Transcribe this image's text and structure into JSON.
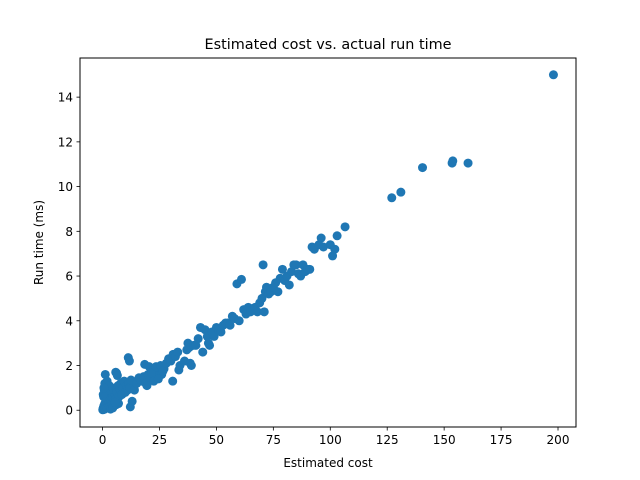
{
  "chart_data": {
    "type": "scatter",
    "title": "Estimated cost vs. actual run time",
    "xlabel": "Estimated cost",
    "ylabel": "Run time (ms)",
    "xlim": [
      -9.9,
      207.9
    ],
    "ylim": [
      -0.75,
      15.75
    ],
    "xticks": [
      0,
      25,
      50,
      75,
      100,
      125,
      150,
      175,
      200
    ],
    "yticks": [
      0,
      2,
      4,
      6,
      8,
      10,
      12,
      14
    ],
    "grid": false,
    "legend": "none",
    "marker_color": "#1f77b4",
    "series": [
      {
        "points": [
          [
            0.1,
            0.02
          ],
          [
            0.2,
            0.05
          ],
          [
            0.3,
            0.1
          ],
          [
            0.4,
            0.03
          ],
          [
            0.5,
            0.15
          ],
          [
            0.6,
            0.2
          ],
          [
            0.8,
            0.08
          ],
          [
            1.0,
            0.3
          ],
          [
            1.2,
            0.12
          ],
          [
            1.5,
            0.4
          ],
          [
            1.8,
            0.25
          ],
          [
            2.0,
            0.5
          ],
          [
            2.2,
            0.18
          ],
          [
            2.5,
            0.6
          ],
          [
            2.8,
            0.35
          ],
          [
            3.0,
            0.7
          ],
          [
            3.2,
            0.22
          ],
          [
            3.5,
            0.45
          ],
          [
            3.8,
            0.85
          ],
          [
            4.0,
            0.3
          ],
          [
            4.3,
            0.55
          ],
          [
            4.6,
            0.9
          ],
          [
            5.0,
            0.4
          ],
          [
            5.3,
            0.75
          ],
          [
            5.6,
            1.0
          ],
          [
            6.0,
            0.5
          ],
          [
            6.4,
            0.8
          ],
          [
            6.8,
            1.1
          ],
          [
            7.2,
            0.6
          ],
          [
            7.6,
            0.95
          ],
          [
            8.0,
            1.2
          ],
          [
            8.5,
            0.7
          ],
          [
            9.0,
            1.0
          ],
          [
            9.5,
            1.3
          ],
          [
            10.0,
            0.8
          ],
          [
            10.5,
            1.1
          ],
          [
            11.0,
            0.9
          ],
          [
            11.5,
            1.2
          ],
          [
            12.0,
            1.0
          ],
          [
            12.5,
            1.35
          ],
          [
            0.5,
            0.6
          ],
          [
            0.8,
            0.9
          ],
          [
            1.0,
            1.2
          ],
          [
            1.2,
            1.6
          ],
          [
            1.5,
            1.0
          ],
          [
            2.0,
            1.3
          ],
          [
            2.5,
            0.9
          ],
          [
            3.0,
            1.1
          ],
          [
            0.3,
            0.7
          ],
          [
            0.6,
            1.0
          ],
          [
            1.0,
            0.05
          ],
          [
            2.0,
            0.1
          ],
          [
            3.0,
            0.15
          ],
          [
            4.0,
            0.2
          ],
          [
            5.0,
            0.2
          ],
          [
            6.0,
            0.25
          ],
          [
            7.0,
            0.3
          ],
          [
            3.5,
            0.05
          ],
          [
            4.5,
            0.1
          ],
          [
            5.5,
            0.35
          ],
          [
            6.2,
            1.65
          ],
          [
            5.8,
            1.7
          ],
          [
            6.5,
            1.55
          ],
          [
            11.3,
            2.35
          ],
          [
            11.8,
            2.2
          ],
          [
            12.2,
            0.15
          ],
          [
            13.0,
            0.4
          ],
          [
            14.0,
            0.9
          ],
          [
            15.0,
            1.2
          ],
          [
            16.0,
            1.45
          ],
          [
            17.0,
            1.3
          ],
          [
            18.0,
            1.5
          ],
          [
            19.0,
            1.2
          ],
          [
            20.0,
            1.6
          ],
          [
            21.0,
            1.4
          ],
          [
            22.0,
            1.8
          ],
          [
            23.0,
            1.5
          ],
          [
            24.0,
            1.7
          ],
          [
            25.0,
            1.9
          ],
          [
            26.0,
            1.6
          ],
          [
            27.0,
            1.85
          ],
          [
            18.5,
            2.05
          ],
          [
            19.5,
            1.1
          ],
          [
            20.5,
            1.95
          ],
          [
            21.5,
            1.65
          ],
          [
            22.5,
            1.3
          ],
          [
            23.5,
            1.95
          ],
          [
            24.5,
            1.4
          ],
          [
            25.5,
            2.0
          ],
          [
            26.5,
            1.75
          ],
          [
            28.0,
            2.1
          ],
          [
            29.0,
            2.3
          ],
          [
            30.0,
            2.2
          ],
          [
            30.8,
            1.3
          ],
          [
            31.0,
            2.5
          ],
          [
            32.0,
            2.4
          ],
          [
            33.0,
            2.6
          ],
          [
            33.5,
            1.8
          ],
          [
            34.0,
            2.0
          ],
          [
            36.0,
            2.2
          ],
          [
            37.0,
            2.7
          ],
          [
            37.5,
            3.0
          ],
          [
            38.0,
            2.8
          ],
          [
            38.5,
            2.1
          ],
          [
            39.0,
            2.0
          ],
          [
            40.0,
            2.9
          ],
          [
            41.0,
            2.9
          ],
          [
            42.0,
            3.2
          ],
          [
            43.0,
            3.7
          ],
          [
            44.0,
            2.6
          ],
          [
            45.0,
            3.6
          ],
          [
            46.0,
            3.3
          ],
          [
            46.5,
            3.0
          ],
          [
            47.0,
            2.9
          ],
          [
            48.0,
            3.5
          ],
          [
            49.0,
            3.3
          ],
          [
            50.0,
            3.7
          ],
          [
            51.0,
            3.6
          ],
          [
            52.0,
            3.5
          ],
          [
            53.0,
            3.8
          ],
          [
            54.0,
            3.9
          ],
          [
            55.0,
            3.9
          ],
          [
            56.0,
            3.8
          ],
          [
            57.0,
            4.2
          ],
          [
            58.0,
            4.1
          ],
          [
            59.0,
            5.65
          ],
          [
            60.0,
            4.0
          ],
          [
            61.0,
            5.85
          ],
          [
            62.0,
            4.5
          ],
          [
            63.0,
            4.3
          ],
          [
            64.0,
            4.6
          ],
          [
            65.0,
            4.4
          ],
          [
            66.0,
            4.5
          ],
          [
            67.0,
            4.6
          ],
          [
            68.0,
            4.4
          ],
          [
            69.0,
            4.8
          ],
          [
            70.0,
            5.0
          ],
          [
            70.5,
            6.5
          ],
          [
            71.0,
            4.4
          ],
          [
            71.5,
            5.3
          ],
          [
            72.0,
            5.5
          ],
          [
            73.0,
            5.2
          ],
          [
            74.0,
            5.3
          ],
          [
            75.0,
            5.5
          ],
          [
            76.0,
            5.7
          ],
          [
            77.0,
            5.3
          ],
          [
            78.0,
            5.9
          ],
          [
            79.0,
            6.3
          ],
          [
            80.0,
            5.8
          ],
          [
            81.0,
            6.0
          ],
          [
            82.0,
            5.6
          ],
          [
            83.0,
            6.2
          ],
          [
            84.0,
            6.5
          ],
          [
            85.0,
            6.5
          ],
          [
            86.0,
            6.1
          ],
          [
            87.0,
            6.0
          ],
          [
            88.0,
            6.5
          ],
          [
            89.0,
            6.2
          ],
          [
            90.0,
            6.3
          ],
          [
            91.0,
            6.3
          ],
          [
            92.0,
            7.3
          ],
          [
            93.0,
            7.2
          ],
          [
            95.0,
            7.4
          ],
          [
            96.0,
            7.7
          ],
          [
            97.0,
            7.3
          ],
          [
            100.0,
            7.4
          ],
          [
            101.0,
            6.9
          ],
          [
            102.0,
            7.2
          ],
          [
            103.0,
            7.8
          ],
          [
            106.5,
            8.2
          ],
          [
            127.0,
            9.5
          ],
          [
            131.0,
            9.75
          ],
          [
            140.5,
            10.85
          ],
          [
            153.5,
            11.05
          ],
          [
            153.8,
            11.15
          ],
          [
            160.5,
            11.05
          ],
          [
            198.0,
            15.0
          ]
        ]
      }
    ]
  }
}
